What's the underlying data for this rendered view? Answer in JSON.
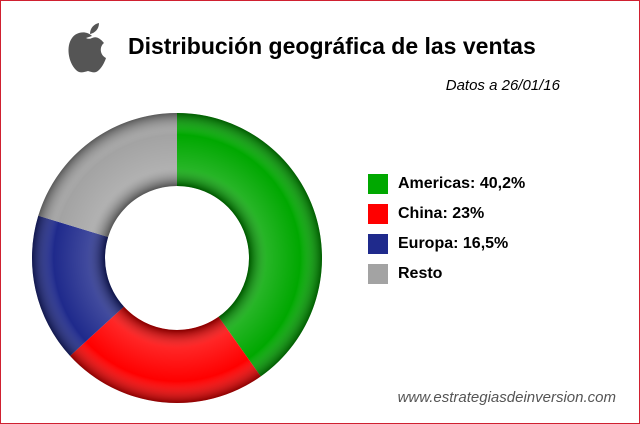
{
  "chart_data": {
    "type": "donut",
    "title": "Distribución geográfica de las ventas",
    "subtitle": "Datos a 26/01/16",
    "source": "www.estrategiasdeinversion.com",
    "categories": [
      "Americas: 40,2%",
      "China: 23%",
      "Europa: 16,5%",
      "Resto"
    ],
    "values": [
      40.2,
      23,
      16.5,
      20.3
    ],
    "colors": [
      "#00a800",
      "#ff0000",
      "#1f2a8c",
      "#a3a3a3"
    ]
  }
}
